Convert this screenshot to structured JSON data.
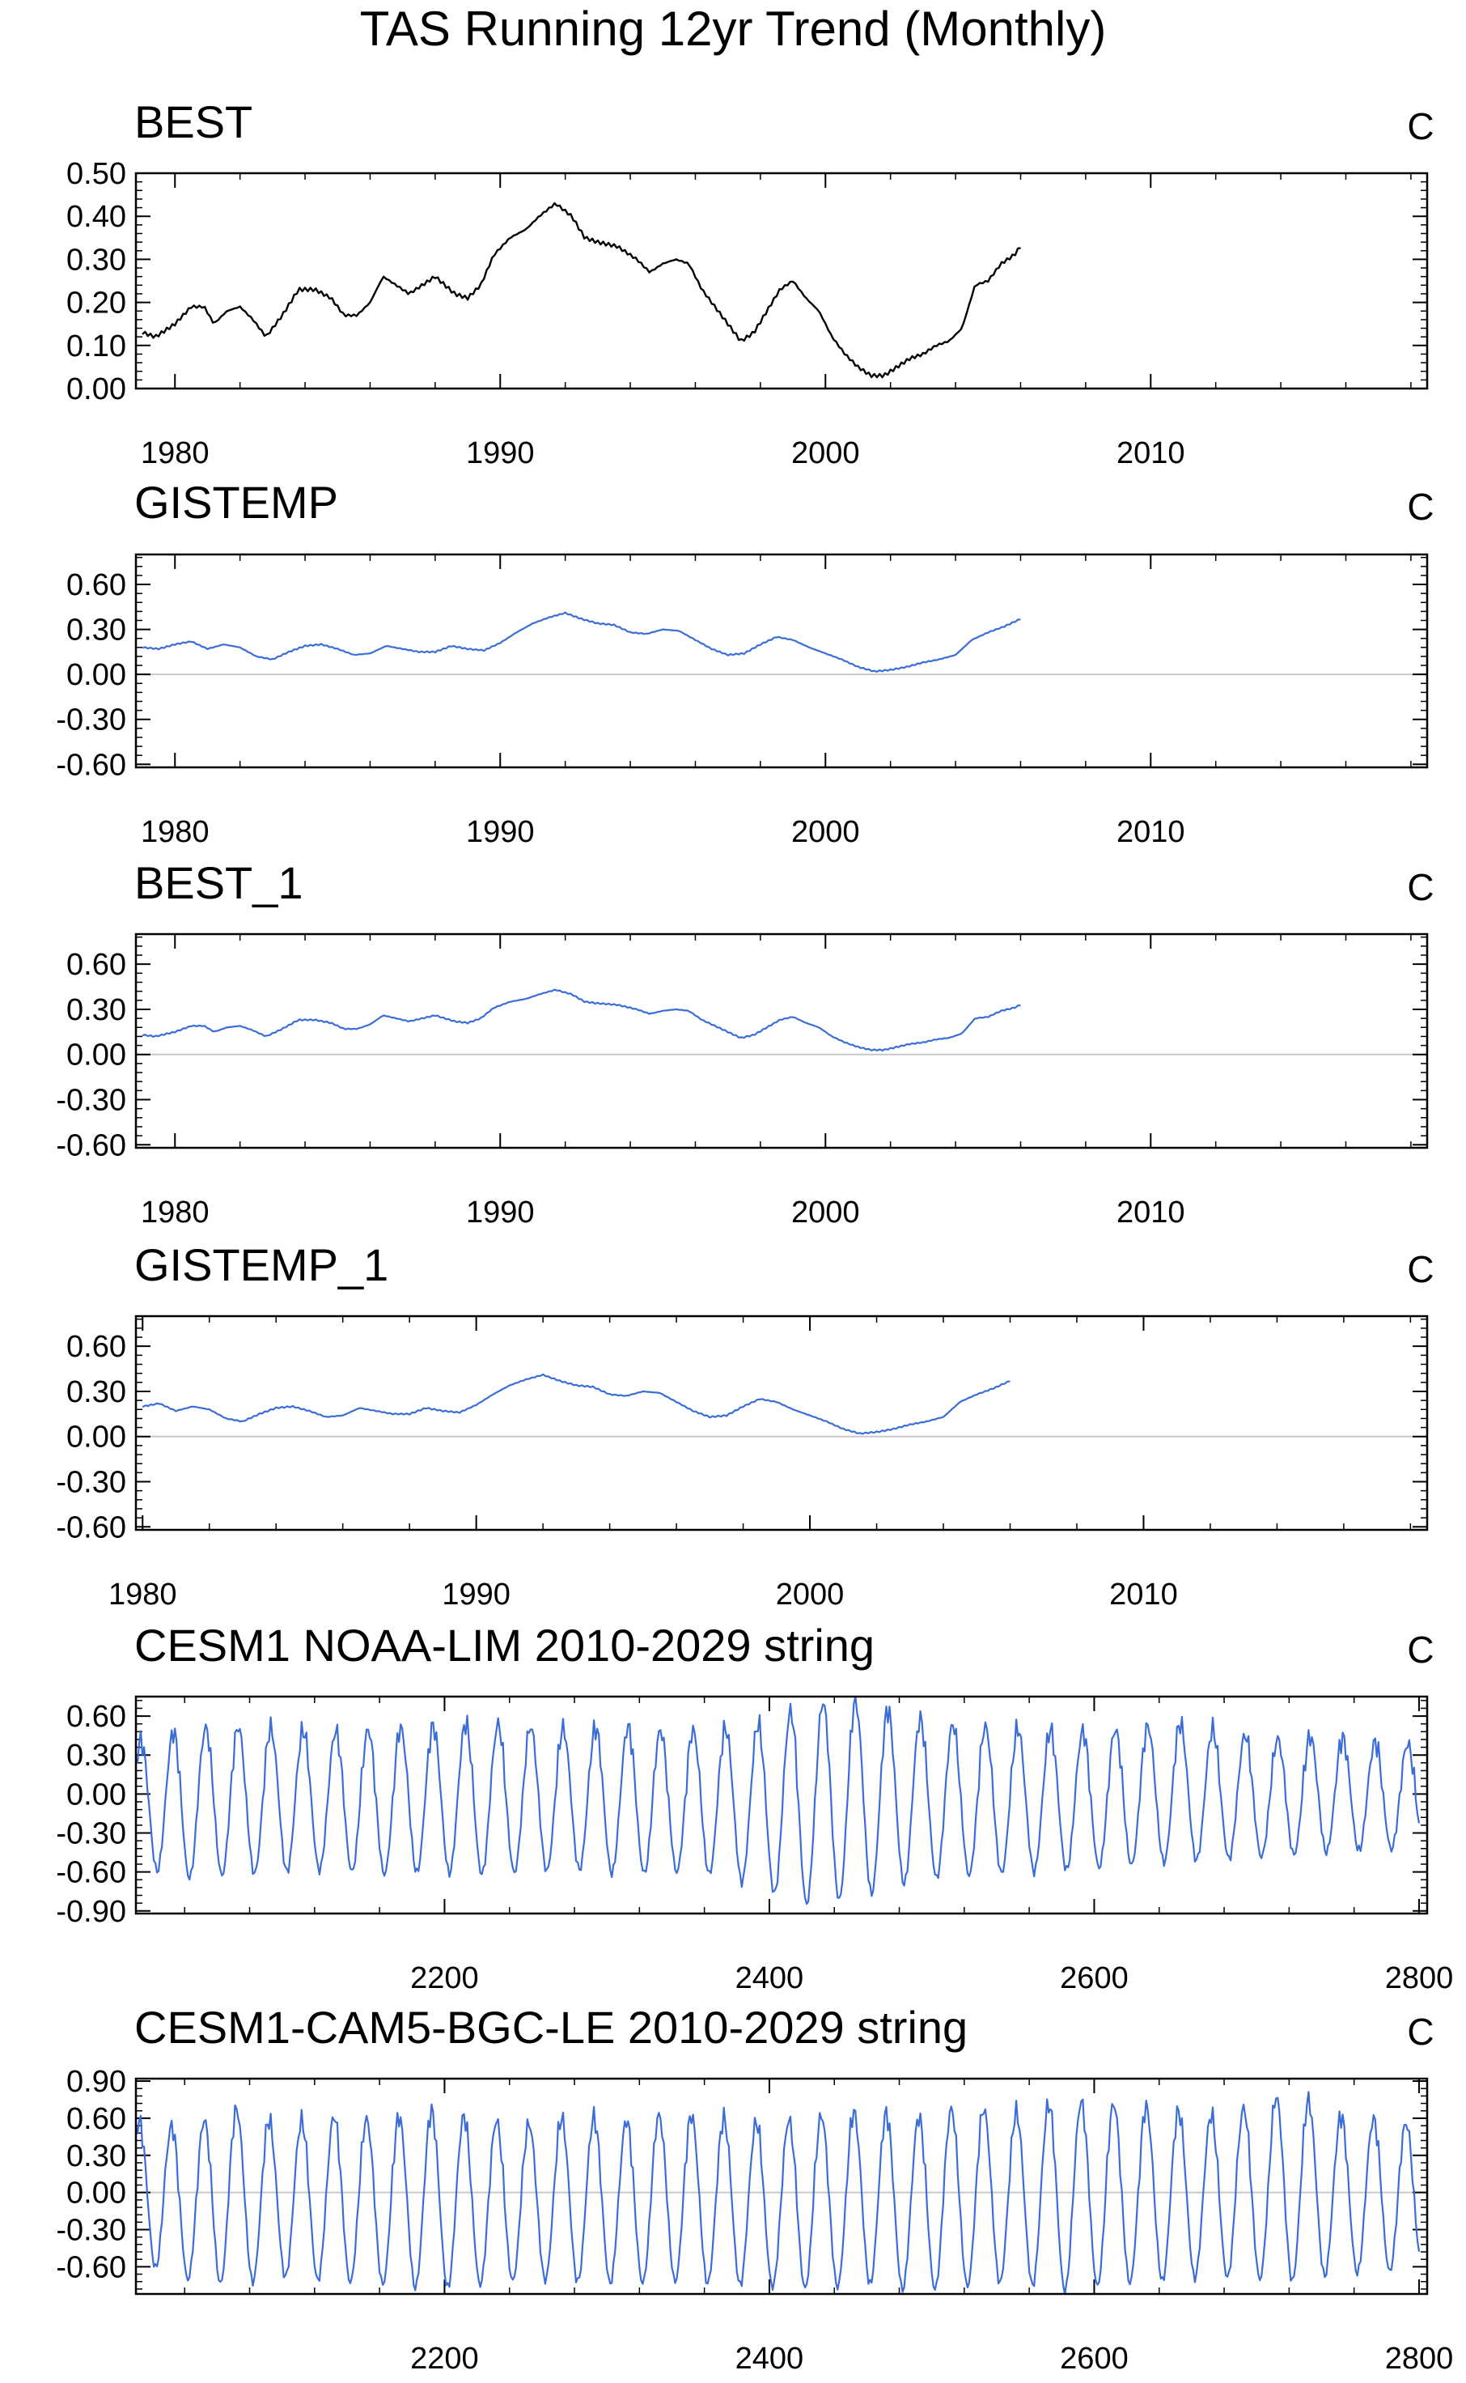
{
  "figure_title": "TAS Running 12yr Trend (Monthly)",
  "chart_data": [
    {
      "type": "line",
      "title": "BEST",
      "unit": "C",
      "line_color": "#000000",
      "zero_line": false,
      "xlim": [
        1978.8,
        2018.5
      ],
      "ylim": [
        0.0,
        0.5
      ],
      "x_ticks": [
        1980,
        1990,
        2000,
        2010
      ],
      "x_tick_labels": [
        "1980",
        "1990",
        "2000",
        "2010"
      ],
      "y_ticks": [
        0.0,
        0.1,
        0.2,
        0.3,
        0.4,
        0.5
      ],
      "y_tick_labels": [
        "0.00",
        "0.10",
        "0.20",
        "0.30",
        "0.40",
        "0.50"
      ],
      "series": [
        {
          "x": [
            1979.0,
            1979.4,
            1980.0,
            1980.5,
            1980.9,
            1981.2,
            1981.6,
            1982.0,
            1982.4,
            1982.8,
            1983.3,
            1983.8,
            1984.3,
            1984.8,
            1985.2,
            1985.6,
            1986.0,
            1986.4,
            1986.8,
            1987.2,
            1987.6,
            1988.0,
            1988.6,
            1989.0,
            1989.4,
            1989.8,
            1990.3,
            1990.8,
            1991.2,
            1991.7,
            1992.2,
            1992.6,
            1993.0,
            1993.6,
            1994.2,
            1994.6,
            1995.0,
            1995.4,
            1995.8,
            1996.2,
            1996.6,
            1997.0,
            1997.4,
            1997.8,
            1998.2,
            1998.6,
            1999.0,
            1999.4,
            1999.8,
            2000.2,
            2000.6,
            2001.0,
            2001.4,
            2001.8,
            2002.2,
            2002.6,
            2003.0,
            2003.4,
            2003.8,
            2004.2,
            2004.6,
            2005.0,
            2005.4,
            2005.8,
            2006.0
          ],
          "y": [
            0.13,
            0.12,
            0.15,
            0.19,
            0.19,
            0.15,
            0.18,
            0.19,
            0.16,
            0.12,
            0.17,
            0.23,
            0.23,
            0.21,
            0.17,
            0.17,
            0.2,
            0.26,
            0.24,
            0.22,
            0.24,
            0.26,
            0.22,
            0.21,
            0.24,
            0.31,
            0.35,
            0.37,
            0.4,
            0.43,
            0.4,
            0.35,
            0.34,
            0.33,
            0.3,
            0.27,
            0.29,
            0.3,
            0.29,
            0.23,
            0.19,
            0.15,
            0.11,
            0.13,
            0.18,
            0.23,
            0.25,
            0.21,
            0.18,
            0.12,
            0.08,
            0.05,
            0.03,
            0.03,
            0.05,
            0.07,
            0.08,
            0.1,
            0.11,
            0.14,
            0.24,
            0.25,
            0.29,
            0.31,
            0.33
          ]
        }
      ]
    },
    {
      "type": "line",
      "title": "GISTEMP",
      "unit": "C",
      "line_color": "#3b6dd8",
      "zero_line": true,
      "xlim": [
        1978.8,
        2018.5
      ],
      "ylim": [
        -0.62,
        0.8
      ],
      "x_ticks": [
        1980,
        1990,
        2000,
        2010
      ],
      "x_tick_labels": [
        "1980",
        "1990",
        "2000",
        "2010"
      ],
      "y_ticks": [
        -0.6,
        -0.3,
        0.0,
        0.3,
        0.6
      ],
      "y_tick_labels": [
        "-0.60",
        "-0.30",
        "0.00",
        "0.30",
        "0.60"
      ],
      "series": [
        {
          "x": [
            1979.0,
            1979.5,
            1980.0,
            1980.5,
            1981.0,
            1981.5,
            1982.0,
            1982.5,
            1983.0,
            1983.5,
            1984.0,
            1984.5,
            1985.0,
            1985.5,
            1986.0,
            1986.5,
            1987.0,
            1987.5,
            1988.0,
            1988.5,
            1989.0,
            1989.5,
            1990.0,
            1990.5,
            1991.0,
            1991.5,
            1992.0,
            1992.5,
            1993.0,
            1993.5,
            1994.0,
            1994.5,
            1995.0,
            1995.5,
            1996.0,
            1996.5,
            1997.0,
            1997.5,
            1998.0,
            1998.5,
            1999.0,
            1999.5,
            2000.0,
            2000.5,
            2001.0,
            2001.5,
            2002.0,
            2002.5,
            2003.0,
            2003.5,
            2004.0,
            2004.5,
            2005.0,
            2005.5,
            2006.0
          ],
          "y": [
            0.18,
            0.17,
            0.2,
            0.22,
            0.17,
            0.2,
            0.18,
            0.12,
            0.1,
            0.15,
            0.19,
            0.2,
            0.17,
            0.13,
            0.14,
            0.19,
            0.17,
            0.15,
            0.15,
            0.19,
            0.17,
            0.16,
            0.21,
            0.28,
            0.34,
            0.38,
            0.41,
            0.37,
            0.34,
            0.33,
            0.28,
            0.27,
            0.3,
            0.29,
            0.23,
            0.17,
            0.13,
            0.14,
            0.2,
            0.25,
            0.23,
            0.18,
            0.14,
            0.1,
            0.05,
            0.02,
            0.03,
            0.05,
            0.08,
            0.1,
            0.13,
            0.23,
            0.28,
            0.32,
            0.37
          ]
        }
      ]
    },
    {
      "type": "line",
      "title": "BEST_1",
      "unit": "C",
      "line_color": "#3b6dd8",
      "zero_line": true,
      "xlim": [
        1978.8,
        2018.5
      ],
      "ylim": [
        -0.62,
        0.8
      ],
      "x_ticks": [
        1980,
        1990,
        2000,
        2010
      ],
      "x_tick_labels": [
        "1980",
        "1990",
        "2000",
        "2010"
      ],
      "y_ticks": [
        -0.6,
        -0.3,
        0.0,
        0.3,
        0.6
      ],
      "y_tick_labels": [
        "-0.60",
        "-0.30",
        "0.00",
        "0.30",
        "0.60"
      ],
      "series": [
        {
          "x": [
            1979.0,
            1979.4,
            1980.0,
            1980.5,
            1980.9,
            1981.2,
            1981.6,
            1982.0,
            1982.4,
            1982.8,
            1983.3,
            1983.8,
            1984.3,
            1984.8,
            1985.2,
            1985.6,
            1986.0,
            1986.4,
            1986.8,
            1987.2,
            1987.6,
            1988.0,
            1988.6,
            1989.0,
            1989.4,
            1989.8,
            1990.3,
            1990.8,
            1991.2,
            1991.7,
            1992.2,
            1992.6,
            1993.0,
            1993.6,
            1994.2,
            1994.6,
            1995.0,
            1995.4,
            1995.8,
            1996.2,
            1996.6,
            1997.0,
            1997.4,
            1997.8,
            1998.2,
            1998.6,
            1999.0,
            1999.4,
            1999.8,
            2000.2,
            2000.6,
            2001.0,
            2001.4,
            2001.8,
            2002.2,
            2002.6,
            2003.0,
            2003.4,
            2003.8,
            2004.2,
            2004.6,
            2005.0,
            2005.4,
            2005.8,
            2006.0
          ],
          "y": [
            0.13,
            0.12,
            0.15,
            0.19,
            0.19,
            0.15,
            0.18,
            0.19,
            0.16,
            0.12,
            0.17,
            0.23,
            0.23,
            0.21,
            0.17,
            0.17,
            0.2,
            0.26,
            0.24,
            0.22,
            0.24,
            0.26,
            0.22,
            0.21,
            0.24,
            0.31,
            0.35,
            0.37,
            0.4,
            0.43,
            0.4,
            0.35,
            0.34,
            0.33,
            0.3,
            0.27,
            0.29,
            0.3,
            0.29,
            0.23,
            0.19,
            0.15,
            0.11,
            0.13,
            0.18,
            0.23,
            0.25,
            0.21,
            0.18,
            0.12,
            0.08,
            0.05,
            0.03,
            0.03,
            0.05,
            0.07,
            0.08,
            0.1,
            0.11,
            0.14,
            0.24,
            0.25,
            0.29,
            0.31,
            0.33
          ]
        }
      ]
    },
    {
      "type": "line",
      "title": "GISTEMP_1",
      "unit": "C",
      "line_color": "#3b6dd8",
      "zero_line": true,
      "xlim": [
        1979.8,
        2018.5
      ],
      "ylim": [
        -0.62,
        0.8
      ],
      "x_ticks": [
        1980,
        1990,
        2000,
        2010
      ],
      "x_tick_labels": [
        "1980",
        "1990",
        "2000",
        "2010"
      ],
      "y_ticks": [
        -0.6,
        -0.3,
        0.0,
        0.3,
        0.6
      ],
      "y_tick_labels": [
        "-0.60",
        "-0.30",
        "0.00",
        "0.30",
        "0.60"
      ],
      "series": [
        {
          "x": [
            1980.0,
            1980.5,
            1981.0,
            1981.5,
            1982.0,
            1982.5,
            1983.0,
            1983.5,
            1984.0,
            1984.5,
            1985.0,
            1985.5,
            1986.0,
            1986.5,
            1987.0,
            1987.5,
            1988.0,
            1988.5,
            1989.0,
            1989.5,
            1990.0,
            1990.5,
            1991.0,
            1991.5,
            1992.0,
            1992.5,
            1993.0,
            1993.5,
            1994.0,
            1994.5,
            1995.0,
            1995.5,
            1996.0,
            1996.5,
            1997.0,
            1997.5,
            1998.0,
            1998.5,
            1999.0,
            1999.5,
            2000.0,
            2000.5,
            2001.0,
            2001.5,
            2002.0,
            2002.5,
            2003.0,
            2003.5,
            2004.0,
            2004.5,
            2005.0,
            2005.5,
            2006.0
          ],
          "y": [
            0.2,
            0.22,
            0.17,
            0.2,
            0.18,
            0.12,
            0.1,
            0.15,
            0.19,
            0.2,
            0.17,
            0.13,
            0.14,
            0.19,
            0.17,
            0.15,
            0.15,
            0.19,
            0.17,
            0.16,
            0.21,
            0.28,
            0.34,
            0.38,
            0.41,
            0.37,
            0.34,
            0.33,
            0.28,
            0.27,
            0.3,
            0.29,
            0.23,
            0.17,
            0.13,
            0.14,
            0.2,
            0.25,
            0.23,
            0.18,
            0.14,
            0.1,
            0.05,
            0.02,
            0.03,
            0.05,
            0.08,
            0.1,
            0.13,
            0.23,
            0.28,
            0.32,
            0.37
          ]
        }
      ]
    },
    {
      "type": "line",
      "title": "CESM1 NOAA-LIM 2010-2029 string",
      "unit": "C",
      "line_color": "#3b6dd8",
      "zero_line": false,
      "xlim": [
        2010,
        2805
      ],
      "ylim": [
        -0.92,
        0.75
      ],
      "x_ticks": [
        2200,
        2400,
        2600,
        2800
      ],
      "x_tick_labels": [
        "2200",
        "2400",
        "2600",
        "2800"
      ],
      "y_ticks": [
        -0.9,
        -0.6,
        -0.3,
        0.0,
        0.3,
        0.6
      ],
      "y_tick_labels": [
        "-0.90",
        "-0.60",
        "-0.30",
        "0.00",
        "0.30",
        "0.60"
      ],
      "oscillation": {
        "x_start": 2010,
        "x_end": 2800,
        "period": 20,
        "phase_peak": 2013
      },
      "series": [
        {
          "x": [
            2010,
            2040,
            2070,
            2100,
            2130,
            2160,
            2190,
            2220,
            2250,
            2280,
            2310,
            2340,
            2370,
            2400,
            2420,
            2440,
            2460,
            2480,
            2500,
            2530,
            2560,
            2590,
            2620,
            2650,
            2680,
            2710,
            2740,
            2770,
            2800
          ],
          "peak": [
            0.4,
            0.5,
            0.52,
            0.5,
            0.48,
            0.5,
            0.52,
            0.55,
            0.52,
            0.5,
            0.52,
            0.48,
            0.5,
            0.55,
            0.68,
            0.72,
            0.7,
            0.62,
            0.55,
            0.52,
            0.5,
            0.48,
            0.5,
            0.55,
            0.48,
            0.42,
            0.45,
            0.4,
            0.38
          ],
          "trough": [
            -0.55,
            -0.65,
            -0.62,
            -0.6,
            -0.58,
            -0.62,
            -0.6,
            -0.62,
            -0.6,
            -0.58,
            -0.62,
            -0.6,
            -0.62,
            -0.75,
            -0.85,
            -0.82,
            -0.78,
            -0.7,
            -0.65,
            -0.62,
            -0.6,
            -0.58,
            -0.55,
            -0.52,
            -0.5,
            -0.48,
            -0.45,
            -0.43,
            -0.42
          ]
        }
      ]
    },
    {
      "type": "line",
      "title": "CESM1-CAM5-BGC-LE 2010-2029 string",
      "unit": "C",
      "line_color": "#3b6dd8",
      "zero_line": true,
      "xlim": [
        2010,
        2805
      ],
      "ylim": [
        -0.82,
        0.92
      ],
      "x_ticks": [
        2200,
        2400,
        2600,
        2800
      ],
      "x_tick_labels": [
        "2200",
        "2400",
        "2600",
        "2800"
      ],
      "y_ticks": [
        -0.6,
        -0.3,
        0.0,
        0.3,
        0.6,
        0.9
      ],
      "y_tick_labels": [
        "-0.60",
        "-0.30",
        "0.00",
        "0.30",
        "0.60",
        "0.90"
      ],
      "oscillation": {
        "x_start": 2010,
        "x_end": 2800,
        "period": 20,
        "phase_peak": 2012
      },
      "series": [
        {
          "x": [
            2010,
            2040,
            2070,
            2100,
            2130,
            2160,
            2190,
            2220,
            2250,
            2280,
            2310,
            2340,
            2370,
            2400,
            2430,
            2460,
            2490,
            2520,
            2550,
            2580,
            2610,
            2640,
            2670,
            2700,
            2720,
            2750,
            2780,
            2800
          ],
          "peak": [
            0.58,
            0.52,
            0.68,
            0.55,
            0.62,
            0.58,
            0.66,
            0.6,
            0.55,
            0.62,
            0.58,
            0.64,
            0.6,
            0.56,
            0.62,
            0.66,
            0.6,
            0.7,
            0.64,
            0.74,
            0.72,
            0.68,
            0.62,
            0.7,
            0.82,
            0.62,
            0.58,
            0.55
          ],
          "trough": [
            -0.55,
            -0.7,
            -0.75,
            -0.68,
            -0.72,
            -0.74,
            -0.78,
            -0.75,
            -0.7,
            -0.72,
            -0.74,
            -0.72,
            -0.74,
            -0.76,
            -0.78,
            -0.74,
            -0.8,
            -0.76,
            -0.72,
            -0.8,
            -0.74,
            -0.72,
            -0.68,
            -0.7,
            -0.72,
            -0.66,
            -0.64,
            -0.62
          ]
        }
      ]
    }
  ]
}
